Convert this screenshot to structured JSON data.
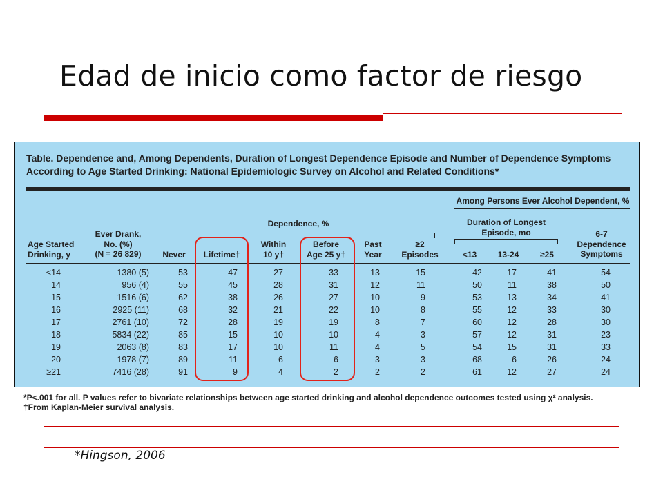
{
  "slide": {
    "title": "Edad de inicio como factor de riesgo",
    "citation": "*Hingson, 2006"
  },
  "table": {
    "caption_line1": "Table. Dependence and, Among Dependents, Duration of Longest Dependence Episode and Number of Dependence Symptoms",
    "caption_line2": "According to Age Started Drinking: National Epidemiologic Survey on Alcohol and Related Conditions*",
    "group_headers": {
      "dependence": "Dependence, %",
      "among_dependent": "Among Persons Ever Alcohol Dependent, %",
      "duration_line1": "Duration of Longest",
      "duration_line2": "Episode, mo"
    },
    "columns": {
      "age_line1": "Age Started",
      "age_line2": "Drinking, y",
      "ever_line1": "Ever Drank,",
      "ever_line2": "No. (%)",
      "ever_line3": "(N = 26 829)",
      "never": "Never",
      "lifetime": "Lifetime†",
      "within_line1": "Within",
      "within_line2": "10 y†",
      "before_line1": "Before",
      "before_line2": "Age 25 y†",
      "past_line1": "Past",
      "past_line2": "Year",
      "episodes_line1": "≥2",
      "episodes_line2": "Episodes",
      "lt13": "<13",
      "m13_24": "13-24",
      "ge25": "≥25",
      "symptoms_line1": "6-7",
      "symptoms_line2": "Dependence",
      "symptoms_line3": "Symptoms"
    },
    "rows": [
      [
        "<14",
        "1380 (5)",
        "53",
        "47",
        "27",
        "33",
        "13",
        "15",
        "42",
        "17",
        "41",
        "54"
      ],
      [
        "14",
        "956 (4)",
        "55",
        "45",
        "28",
        "31",
        "12",
        "11",
        "50",
        "11",
        "38",
        "50"
      ],
      [
        "15",
        "1516 (6)",
        "62",
        "38",
        "26",
        "27",
        "10",
        "9",
        "53",
        "13",
        "34",
        "41"
      ],
      [
        "16",
        "2925 (11)",
        "68",
        "32",
        "21",
        "22",
        "10",
        "8",
        "55",
        "12",
        "33",
        "30"
      ],
      [
        "17",
        "2761 (10)",
        "72",
        "28",
        "19",
        "19",
        "8",
        "7",
        "60",
        "12",
        "28",
        "30"
      ],
      [
        "18",
        "5834 (22)",
        "85",
        "15",
        "10",
        "10",
        "4",
        "3",
        "57",
        "12",
        "31",
        "23"
      ],
      [
        "19",
        "2063 (8)",
        "83",
        "17",
        "10",
        "11",
        "4",
        "5",
        "54",
        "15",
        "31",
        "33"
      ],
      [
        "20",
        "1978 (7)",
        "89",
        "11",
        "6",
        "6",
        "3",
        "3",
        "68",
        "6",
        "26",
        "24"
      ],
      [
        "≥21",
        "7416 (28)",
        "91",
        "9",
        "4",
        "2",
        "2",
        "2",
        "61",
        "12",
        "27",
        "24"
      ]
    ],
    "footnote1": "*P<.001 for all. P values refer to bivariate relationships between age started drinking and alcohol dependence outcomes tested using χ² analysis.",
    "footnote2": "†From Kaplan-Meier survival analysis."
  },
  "colors": {
    "accent_red": "#cc0000",
    "table_background": "#a8daf2",
    "highlight_red": "#e2231a"
  }
}
